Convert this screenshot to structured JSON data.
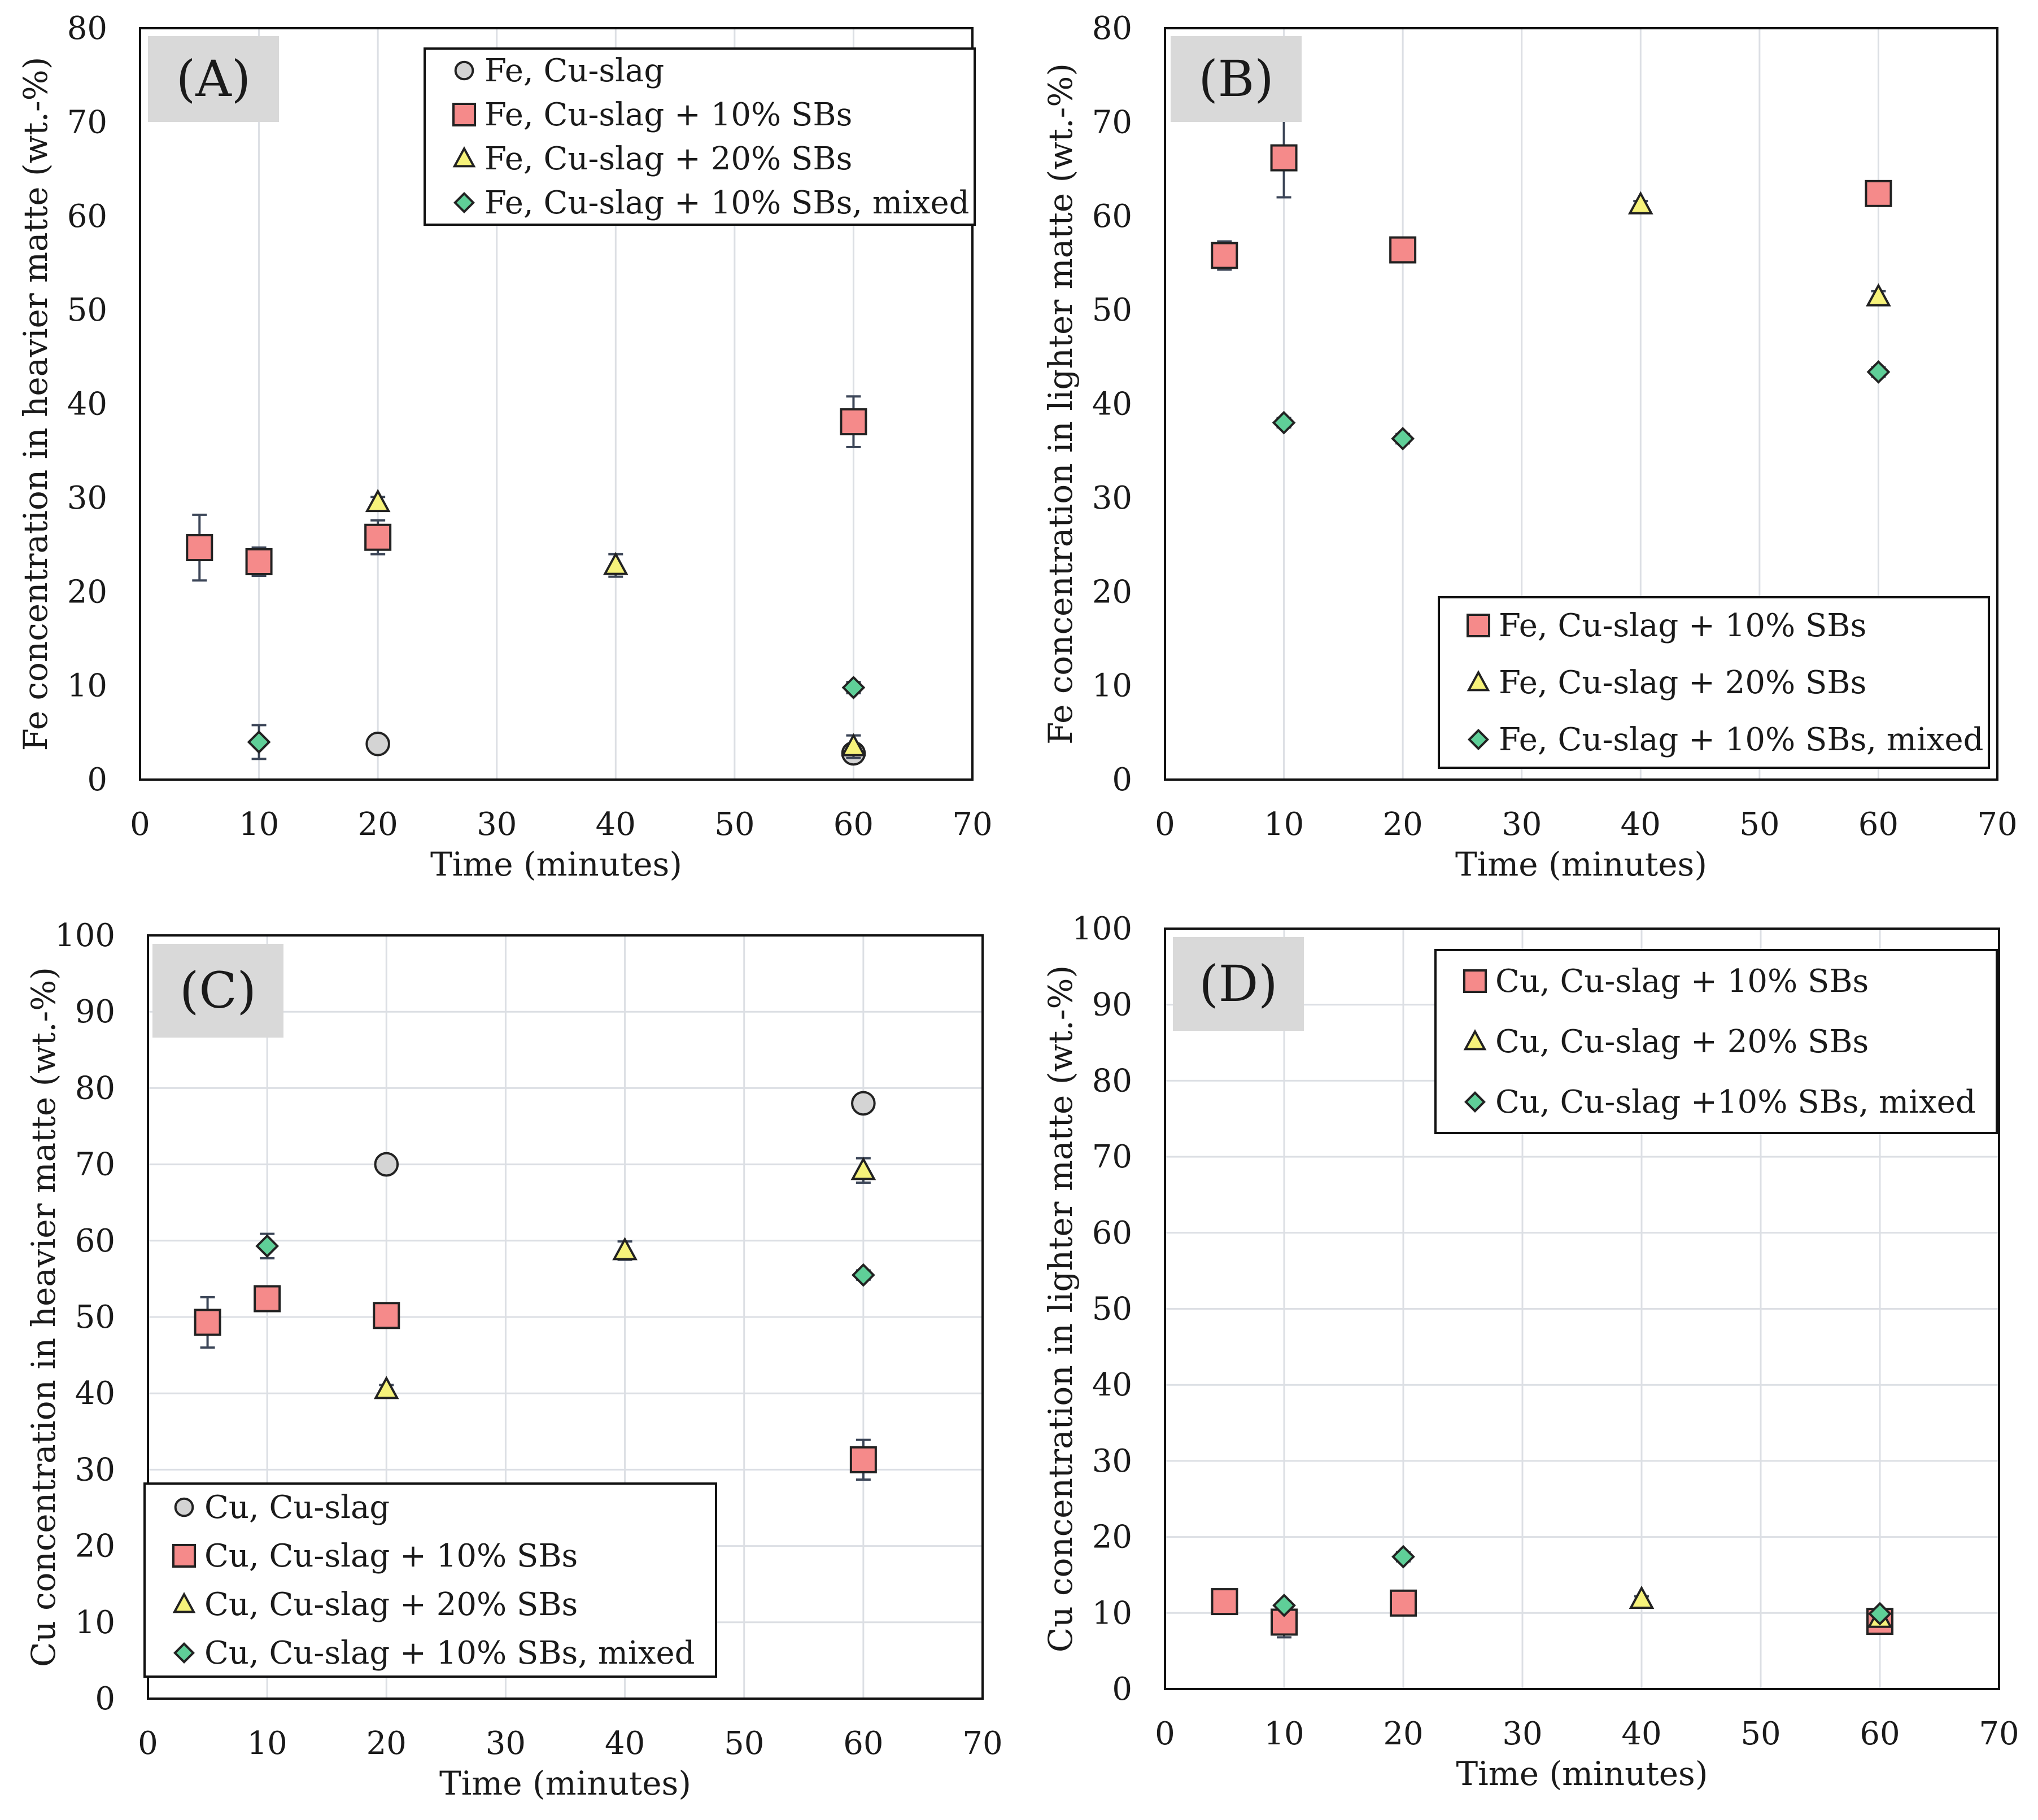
{
  "colors": {
    "circle": "#d4d4d4",
    "square": "#f58a8a",
    "triangle": "#f6f27a",
    "diamond": "#5fcf98",
    "errorbar": "#3c4658",
    "grid": "#dcdfe4",
    "label_box": "#d9d9d9"
  },
  "chart_data": [
    {
      "type": "scatter",
      "panel_label": "(A)",
      "xlabel": "Time (minutes)",
      "ylabel": "Fe concentration in heavier matte (wt.-%)",
      "xlim": [
        0,
        70
      ],
      "ylim": [
        0,
        80
      ],
      "xticks": [
        "0",
        "10",
        "20",
        "30",
        "40",
        "50",
        "60",
        "70"
      ],
      "yticks": [
        "0",
        "10",
        "20",
        "30",
        "40",
        "50",
        "60",
        "70",
        "80"
      ],
      "grid": "vertical",
      "legend_position": "top-right",
      "series": [
        {
          "name": "Fe, Cu-slag",
          "marker": "circle",
          "points": [
            {
              "x": 20,
              "y": 3.8
            },
            {
              "x": 60,
              "y": 2.8
            }
          ]
        },
        {
          "name": "Fe, Cu-slag + 10% SBs",
          "marker": "square",
          "points": [
            {
              "x": 5,
              "y": 24.7,
              "err": 3.5
            },
            {
              "x": 10,
              "y": 23.2,
              "err": 1.5
            },
            {
              "x": 20,
              "y": 25.8,
              "err": 1.8
            },
            {
              "x": 60,
              "y": 38.1,
              "err": 2.7
            }
          ]
        },
        {
          "name": "Fe, Cu-slag + 20% SBs",
          "marker": "triangle",
          "points": [
            {
              "x": 20,
              "y": 29.5,
              "err": 0.6
            },
            {
              "x": 40,
              "y": 22.8,
              "err": 1.2
            },
            {
              "x": 60,
              "y": 3.5,
              "err": 1.2
            }
          ]
        },
        {
          "name": "Fe, Cu-slag + 10% SBs, mixed",
          "marker": "diamond",
          "points": [
            {
              "x": 10,
              "y": 4.0,
              "err": 1.8
            },
            {
              "x": 60,
              "y": 9.8,
              "err": 0.6
            }
          ]
        }
      ]
    },
    {
      "type": "scatter",
      "panel_label": "(B)",
      "xlabel": "Time (minutes)",
      "ylabel": "Fe concentration in lighter matte (wt.-%)",
      "xlim": [
        0,
        70
      ],
      "ylim": [
        0,
        80
      ],
      "xticks": [
        "0",
        "10",
        "20",
        "30",
        "40",
        "50",
        "60",
        "70"
      ],
      "yticks": [
        "0",
        "10",
        "20",
        "30",
        "40",
        "50",
        "60",
        "70",
        "80"
      ],
      "grid": "vertical",
      "legend_position": "bottom-right",
      "series": [
        {
          "name": "Fe, Cu-slag + 10% SBs",
          "marker": "square",
          "points": [
            {
              "x": 5,
              "y": 55.8,
              "err": 1.5
            },
            {
              "x": 10,
              "y": 66.2,
              "err": 4.2
            },
            {
              "x": 20,
              "y": 56.4,
              "err": 1.0
            },
            {
              "x": 60,
              "y": 62.4,
              "err": 1.0
            }
          ]
        },
        {
          "name": "Fe, Cu-slag + 20% SBs",
          "marker": "triangle",
          "points": [
            {
              "x": 40,
              "y": 61.2,
              "err": 0.4
            },
            {
              "x": 60,
              "y": 51.4,
              "err": 0.6
            }
          ]
        },
        {
          "name": "Fe, Cu-slag + 10% SBs, mixed",
          "marker": "diamond",
          "points": [
            {
              "x": 10,
              "y": 38.0,
              "err": 0.5
            },
            {
              "x": 20,
              "y": 36.3,
              "err": 0.5
            },
            {
              "x": 60,
              "y": 43.4,
              "err": 0.5
            }
          ]
        }
      ]
    },
    {
      "type": "scatter",
      "panel_label": "(C)",
      "xlabel": "Time (minutes)",
      "ylabel": "Cu concentration in heavier matte (wt.-%)",
      "xlim": [
        0,
        70
      ],
      "ylim": [
        0,
        100
      ],
      "xticks": [
        "0",
        "10",
        "20",
        "30",
        "40",
        "50",
        "60",
        "70"
      ],
      "yticks": [
        "0",
        "10",
        "20",
        "30",
        "40",
        "50",
        "60",
        "70",
        "80",
        "90",
        "100"
      ],
      "grid": "both",
      "legend_position": "bottom-left",
      "series": [
        {
          "name": "Cu, Cu-slag",
          "marker": "circle",
          "points": [
            {
              "x": 20,
              "y": 70.0
            },
            {
              "x": 60,
              "y": 78.0
            }
          ]
        },
        {
          "name": "Cu, Cu-slag + 10% SBs",
          "marker": "square",
          "points": [
            {
              "x": 5,
              "y": 49.3,
              "err": 3.3
            },
            {
              "x": 10,
              "y": 52.4,
              "err": 1.0
            },
            {
              "x": 20,
              "y": 50.2,
              "err": 1.5
            },
            {
              "x": 60,
              "y": 31.3,
              "err": 2.6
            }
          ]
        },
        {
          "name": "Cu, Cu-slag + 20% SBs",
          "marker": "triangle",
          "points": [
            {
              "x": 20,
              "y": 40.5,
              "err": 0.6
            },
            {
              "x": 40,
              "y": 58.7,
              "err": 1.2
            },
            {
              "x": 60,
              "y": 69.2,
              "err": 1.6
            }
          ]
        },
        {
          "name": "Cu, Cu-slag + 10% SBs, mixed",
          "marker": "diamond",
          "points": [
            {
              "x": 10,
              "y": 59.3,
              "err": 1.6
            },
            {
              "x": 60,
              "y": 55.5,
              "err": 0.6
            }
          ]
        }
      ]
    },
    {
      "type": "scatter",
      "panel_label": "(D)",
      "xlabel": "Time (minutes)",
      "ylabel": "Cu concentration in lighter matte (wt.-%)",
      "xlim": [
        0,
        70
      ],
      "ylim": [
        0,
        100
      ],
      "xticks": [
        "0",
        "10",
        "20",
        "30",
        "40",
        "50",
        "60",
        "70"
      ],
      "yticks": [
        "0",
        "10",
        "20",
        "30",
        "40",
        "50",
        "60",
        "70",
        "80",
        "90",
        "100"
      ],
      "grid": "both",
      "legend_position": "top-right",
      "series": [
        {
          "name": "Cu, Cu-slag + 10% SBs",
          "marker": "square",
          "points": [
            {
              "x": 5,
              "y": 11.5,
              "err": 0.8
            },
            {
              "x": 10,
              "y": 8.8,
              "err": 2.0
            },
            {
              "x": 20,
              "y": 11.3,
              "err": 0.8
            },
            {
              "x": 60,
              "y": 8.9,
              "err": 0.6
            }
          ]
        },
        {
          "name": "Cu, Cu-slag + 20% SBs",
          "marker": "triangle",
          "points": [
            {
              "x": 40,
              "y": 11.8,
              "err": 0.4
            },
            {
              "x": 60,
              "y": 9.3,
              "err": 0.4
            }
          ]
        },
        {
          "name": "Cu, Cu-slag +10% SBs, mixed",
          "marker": "diamond",
          "points": [
            {
              "x": 10,
              "y": 11.0,
              "err": 0.5
            },
            {
              "x": 20,
              "y": 17.4,
              "err": 0.6
            },
            {
              "x": 60,
              "y": 9.9,
              "err": 0.5
            }
          ]
        }
      ]
    }
  ]
}
